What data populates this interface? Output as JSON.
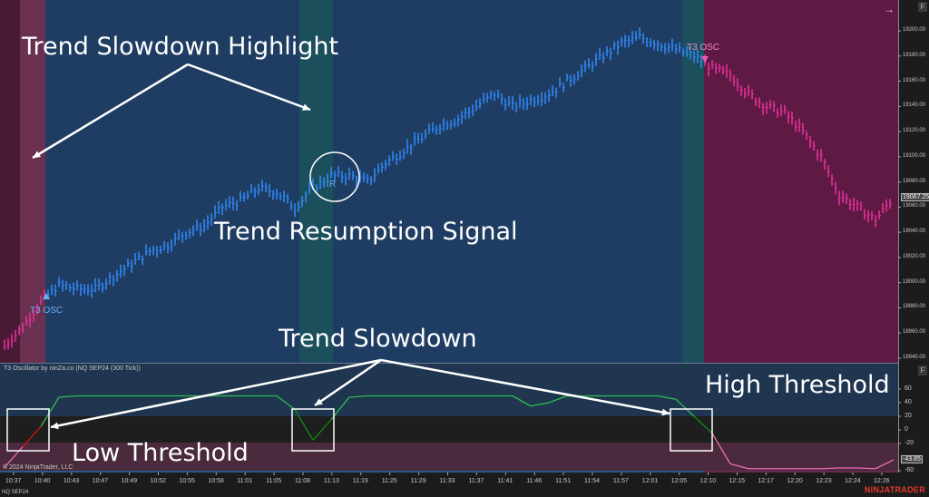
{
  "instrument_label": "NQ SEP24",
  "indicator_title": "T3 Oscillator by ninZa.co (NQ SEP24 (300 Tick))",
  "copyright": "© 2024 NinjaTrader, LLC",
  "brand": "NINJATRADER",
  "buttons": {
    "f_main": "F",
    "f_osc": "F",
    "scroll_right": "→"
  },
  "colors": {
    "up_bar": "#2f86f0",
    "down_bar": "#e0309a",
    "bull_bg": "#1f3d63",
    "bear_bg": "#5e1a42",
    "slowdown_bg": "#1c4f5c",
    "osc_green": "#2ebd4e",
    "osc_dark_green": "#138a13",
    "osc_red": "#e01010",
    "osc_pink": "#f06ab8"
  },
  "annotations": {
    "trend_slowdown_highlight": "Trend Slowdown Highlight",
    "trend_resumption_signal": "Trend Resumption Signal",
    "trend_slowdown": "Trend Slowdown",
    "high_threshold": "High Threshold",
    "low_threshold": "Low Threshold"
  },
  "signals": [
    {
      "label": "T3 OSC",
      "direction": "up"
    },
    {
      "label": "T3 OSC",
      "direction": "down"
    },
    {
      "label": "R",
      "direction": "resumption"
    }
  ],
  "price_axis": {
    "ticks": [
      "19200.00",
      "19180.00",
      "19160.00",
      "19140.00",
      "19120.00",
      "19100.00",
      "19080.00",
      "19060.00",
      "19040.00",
      "19020.00",
      "19000.00",
      "18980.00",
      "18960.00",
      "18940.00"
    ],
    "current_price": "19067.25",
    "range": [
      18940,
      19200
    ]
  },
  "osc_axis": {
    "ticks": [
      "60",
      "40",
      "20",
      "0",
      "-20",
      "-60"
    ],
    "current_value": "-43.85",
    "high_threshold": 20,
    "low_threshold": -20,
    "range": [
      -62,
      70
    ]
  },
  "time_axis": [
    "10:37",
    "10:40",
    "10:43",
    "10:47",
    "10:49",
    "10:52",
    "10:55",
    "10:58",
    "11:01",
    "11:05",
    "11:08",
    "11:13",
    "11:19",
    "11:25",
    "11:29",
    "11:33",
    "11:37",
    "11:41",
    "11:46",
    "11:51",
    "11:54",
    "11:57",
    "12:01",
    "12:05",
    "12:10",
    "12:15",
    "12:17",
    "12:20",
    "12:23",
    "12:24",
    "12:26"
  ],
  "chart_data": {
    "type": "line",
    "price": [
      18950,
      18965,
      18985,
      18998,
      18995,
      18995,
      19005,
      19015,
      19025,
      19030,
      19040,
      19045,
      19060,
      19065,
      19075,
      19072,
      19060,
      19075,
      19085,
      19085,
      19080,
      19095,
      19105,
      19115,
      19125,
      19130,
      19140,
      19150,
      19140,
      19145,
      19150,
      19160,
      19170,
      19180,
      19190,
      19195,
      19190,
      19185,
      19180,
      19170,
      19165,
      19150,
      19140,
      19135,
      19120,
      19100,
      19070,
      19060,
      19050,
      19068
    ],
    "oscillator": [
      -55,
      -25,
      5,
      48,
      50,
      50,
      50,
      50,
      50,
      50,
      50,
      50,
      50,
      50,
      50,
      50,
      30,
      -15,
      15,
      48,
      50,
      50,
      50,
      50,
      50,
      50,
      50,
      50,
      50,
      35,
      40,
      50,
      50,
      50,
      50,
      50,
      50,
      45,
      20,
      -5,
      -50,
      -57,
      -57,
      -57,
      -57,
      -57,
      -56,
      -56,
      -57,
      -44
    ]
  }
}
